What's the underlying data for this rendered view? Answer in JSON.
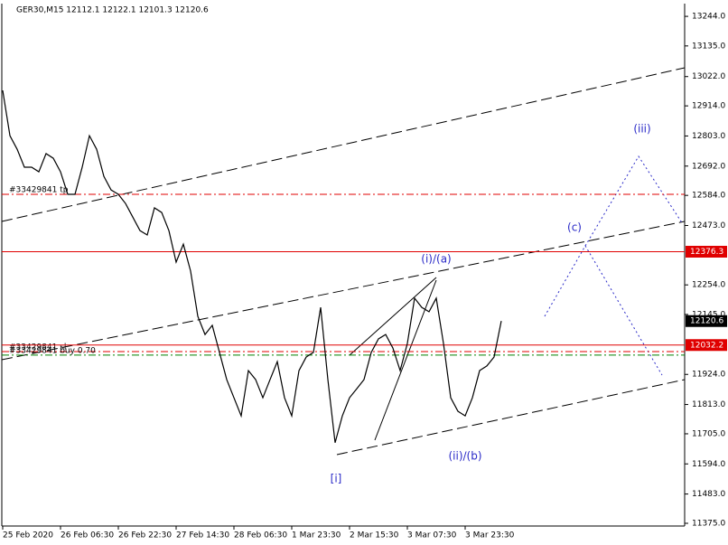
{
  "chart_data": {
    "type": "line",
    "title": "GER30,M15  12112.1 12122.1 12101.3 12120.6",
    "categories": [
      "25 Feb 2020",
      null,
      null,
      null,
      null,
      null,
      null,
      null,
      "26 Feb 06:30",
      null,
      null,
      null,
      null,
      null,
      null,
      null,
      "26 Feb 22:30",
      null,
      null,
      null,
      null,
      null,
      null,
      null,
      "27 Feb 14:30",
      null,
      null,
      null,
      null,
      null,
      null,
      null,
      "28 Feb 06:30",
      null,
      null,
      null,
      null,
      null,
      null,
      null,
      "1 Mar 23:30",
      null,
      null,
      null,
      null,
      null,
      null,
      null,
      "2 Mar 15:30",
      null,
      null,
      null,
      null,
      null,
      null,
      null,
      "3 Mar 07:30",
      null,
      null,
      null,
      null,
      null,
      null,
      null,
      "3 Mar 23:30",
      null,
      null,
      null,
      null,
      null
    ],
    "values": [
      12971,
      12804,
      12754,
      12688,
      12688,
      12671,
      12738,
      12721,
      12671,
      12588,
      12588,
      12688,
      12804,
      12754,
      12654,
      12604,
      12588,
      12554,
      12504,
      12454,
      12438,
      12538,
      12521,
      12454,
      12338,
      12404,
      12305,
      12138,
      12071,
      12105,
      12005,
      11905,
      11838,
      11771,
      11938,
      11905,
      11838,
      11905,
      11971,
      11838,
      11771,
      11938,
      11988,
      12005,
      12171,
      11905,
      11672,
      11771,
      11838,
      11871,
      11905,
      12005,
      12055,
      12071,
      12021,
      11938,
      12038,
      12205,
      12171,
      12155,
      12205,
      12038,
      11838,
      11788,
      11771,
      11838,
      11938,
      11955,
      11988,
      12121
    ],
    "color": "#000000",
    "ylim": [
      11365,
      13291
    ],
    "yticks": [
      {
        "value": 13244,
        "label": "13244.0"
      },
      {
        "value": 13135,
        "label": "13135.0"
      },
      {
        "value": 13022,
        "label": "13022.0"
      },
      {
        "value": 12914,
        "label": "12914.0"
      },
      {
        "value": 12803,
        "label": "12803.0"
      },
      {
        "value": 12692,
        "label": "12692.0"
      },
      {
        "value": 12584,
        "label": "12584.0"
      },
      {
        "value": 12473,
        "label": "12473.0"
      },
      {
        "value": 12254,
        "label": "12254.0"
      },
      {
        "value": 12145,
        "label": "12145.0"
      },
      {
        "value": 11924,
        "label": "11924.0"
      },
      {
        "value": 11813,
        "label": "11813.0"
      },
      {
        "value": 11705,
        "label": "11705.0"
      },
      {
        "value": 11594,
        "label": "11594.0"
      },
      {
        "value": 11483,
        "label": "11483.0"
      },
      {
        "value": 11375,
        "label": "11375.0"
      }
    ],
    "price_tags": [
      {
        "value": 12376.3,
        "color": "#e00000"
      },
      {
        "value": 12120.6,
        "color": "#000000"
      },
      {
        "value": 12032.2,
        "color": "#e00000"
      }
    ],
    "orders": [
      {
        "text": "#33429841 tp",
        "value": 12588,
        "color": "#e00000"
      },
      {
        "text": "#33429841 sl",
        "value": 12008,
        "color": "#e00000"
      },
      {
        "text": "#33429841 buy 0.70",
        "value": 11995,
        "color": "#008000"
      }
    ],
    "annotations": [
      "(i)/(a)",
      "(ii)/(b)",
      "[i]",
      "(c)",
      "(iii)"
    ]
  }
}
